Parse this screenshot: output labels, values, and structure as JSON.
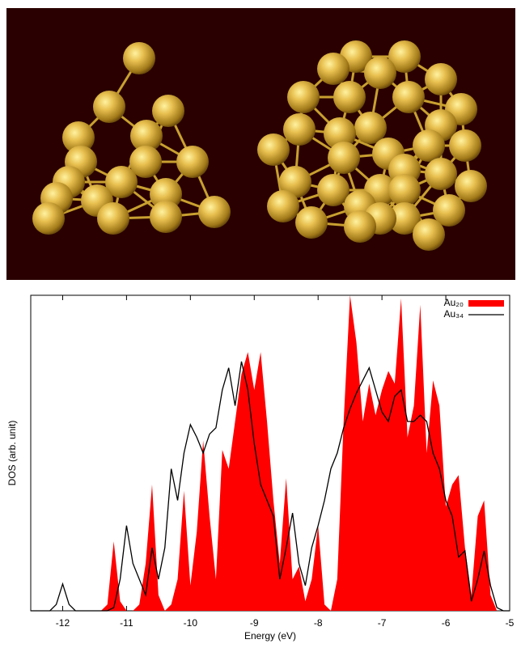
{
  "chart_data": {
    "type": "area-line",
    "xlabel": "Energy (eV)",
    "ylabel": "DOS (arb. unit)",
    "x": [
      -12.5,
      -12.4,
      -12.3,
      -12.2,
      -12.1,
      -12.0,
      -11.9,
      -11.8,
      -11.7,
      -11.6,
      -11.5,
      -11.4,
      -11.3,
      -11.2,
      -11.1,
      -11.0,
      -10.9,
      -10.8,
      -10.7,
      -10.6,
      -10.5,
      -10.4,
      -10.3,
      -10.2,
      -10.1,
      -10.0,
      -9.9,
      -9.8,
      -9.7,
      -9.6,
      -9.5,
      -9.4,
      -9.3,
      -9.2,
      -9.1,
      -9.0,
      -8.9,
      -8.8,
      -8.7,
      -8.6,
      -8.5,
      -8.4,
      -8.3,
      -8.2,
      -8.1,
      -8.0,
      -7.9,
      -7.8,
      -7.7,
      -7.6,
      -7.5,
      -7.4,
      -7.3,
      -7.2,
      -7.1,
      -7.0,
      -6.9,
      -6.8,
      -6.7,
      -6.6,
      -6.5,
      -6.4,
      -6.3,
      -6.2,
      -6.1,
      -6.0,
      -5.9,
      -5.8,
      -5.7,
      -5.6,
      -5.5,
      -5.4,
      -5.3,
      -5.2,
      -5.1,
      -5.0
    ],
    "series": [
      {
        "name": "Au₂₀",
        "color": "#ff0000",
        "style": "area",
        "values": [
          0,
          0,
          0,
          0,
          0,
          0,
          0,
          0,
          0,
          0,
          0,
          0,
          0.02,
          0.22,
          0.03,
          0,
          0,
          0.02,
          0.15,
          0.4,
          0.05,
          0,
          0.02,
          0.1,
          0.38,
          0.08,
          0.25,
          0.54,
          0.3,
          0.1,
          0.51,
          0.45,
          0.6,
          0.75,
          0.82,
          0.7,
          0.82,
          0.6,
          0.35,
          0.15,
          0.42,
          0.1,
          0.14,
          0.03,
          0.1,
          0.27,
          0.02,
          0,
          0.1,
          0.6,
          1.0,
          0.85,
          0.6,
          0.72,
          0.62,
          0.7,
          0.76,
          0.72,
          0.99,
          0.55,
          0.65,
          0.97,
          0.5,
          0.73,
          0.65,
          0.33,
          0.4,
          0.43,
          0.2,
          0.05,
          0.3,
          0.35,
          0.05,
          0,
          0,
          0
        ]
      },
      {
        "name": "Au₃₄",
        "color": "#000000",
        "style": "line",
        "values": [
          0,
          0,
          0,
          0,
          0.02,
          0.085,
          0.02,
          0,
          0,
          0,
          0,
          0,
          0,
          0.01,
          0.1,
          0.27,
          0.15,
          0.1,
          0.05,
          0.2,
          0.1,
          0.2,
          0.45,
          0.35,
          0.5,
          0.59,
          0.55,
          0.5,
          0.56,
          0.58,
          0.7,
          0.77,
          0.65,
          0.79,
          0.7,
          0.53,
          0.4,
          0.35,
          0.3,
          0.1,
          0.2,
          0.31,
          0.15,
          0.08,
          0.2,
          0.27,
          0.35,
          0.45,
          0.5,
          0.58,
          0.64,
          0.69,
          0.73,
          0.77,
          0.7,
          0.63,
          0.6,
          0.68,
          0.7,
          0.6,
          0.6,
          0.62,
          0.6,
          0.5,
          0.45,
          0.35,
          0.3,
          0.17,
          0.19,
          0.03,
          0.1,
          0.19,
          0.08,
          0.01,
          0,
          0
        ]
      }
    ],
    "xlim": [
      -12.5,
      -5
    ],
    "xticks": [
      -12,
      -11,
      -10,
      -9,
      -8,
      -7,
      -6,
      -5
    ],
    "ylim": [
      0,
      1
    ],
    "legend": "upper right"
  }
}
